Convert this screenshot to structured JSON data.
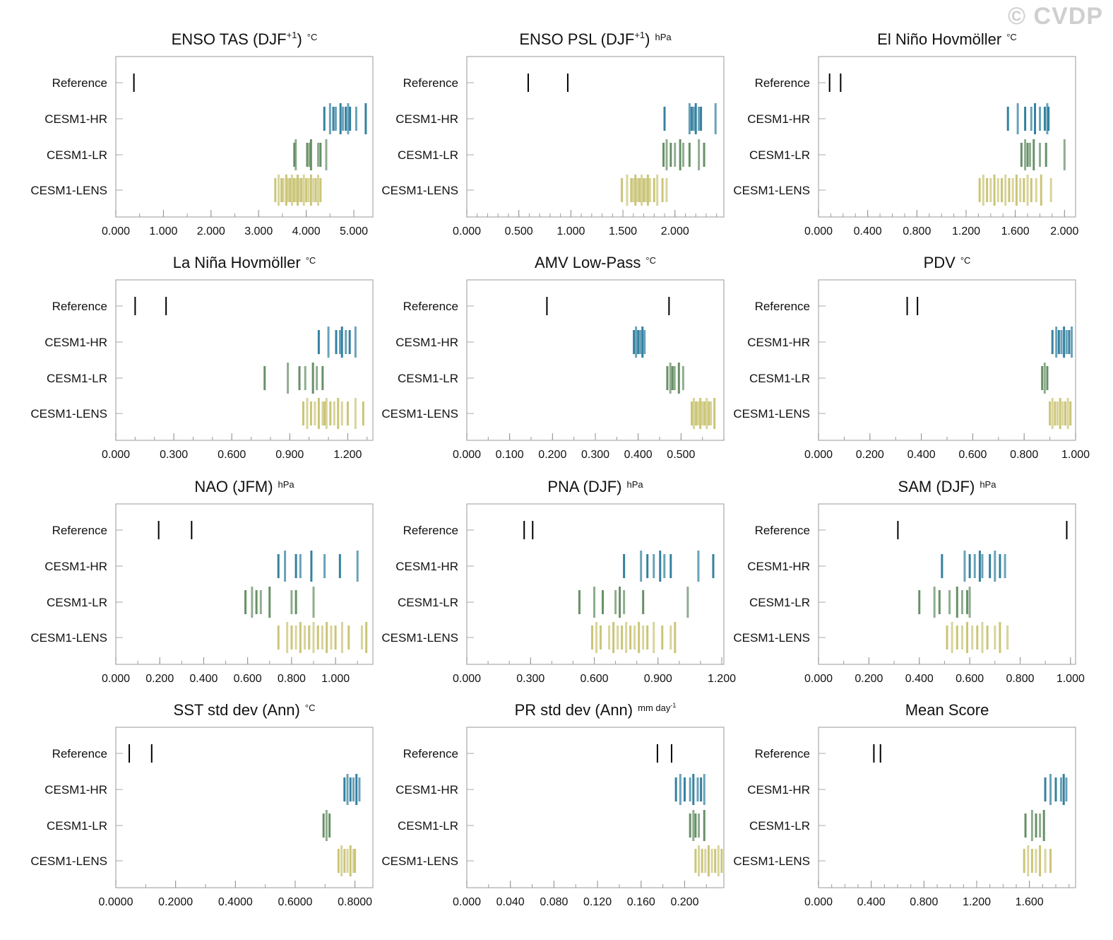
{
  "watermark": "© CVDP",
  "series_colors": {
    "CESM1-HR": "#2a7a9b",
    "CESM1-LR": "#5f8a5f",
    "CESM1-LENS": "#c8c270",
    "Reference": "#000000"
  },
  "chart_data": [
    {
      "type": "strip",
      "title": "ENSO TAS (DJF",
      "sup": "+1",
      "title_end": ")",
      "unit": "°C",
      "unit_sup": "",
      "ticks": [
        "0.000",
        "1.000",
        "2.000",
        "3.000",
        "4.000",
        "5.000"
      ],
      "tick_values": [
        0,
        1,
        2,
        3,
        4,
        5
      ],
      "minor_step": 0.5,
      "xlim": [
        0,
        5.4
      ],
      "rows": {
        "Reference": [
          0.38
        ],
        "CESM1-HR": [
          4.38,
          4.5,
          4.57,
          4.62,
          4.72,
          4.77,
          4.83,
          4.88,
          4.92,
          5.05,
          5.25
        ],
        "CESM1-LR": [
          3.75,
          3.78,
          4.02,
          4.07,
          4.1,
          4.25,
          4.3,
          4.42
        ],
        "CESM1-LENS": [
          3.35,
          3.42,
          3.48,
          3.52,
          3.58,
          3.62,
          3.66,
          3.7,
          3.74,
          3.78,
          3.82,
          3.86,
          3.9,
          3.95,
          4.0,
          4.05,
          4.1,
          4.15,
          4.2,
          4.25,
          4.3
        ]
      }
    },
    {
      "type": "strip",
      "title": "ENSO PSL (DJF",
      "sup": "+1",
      "title_end": ")",
      "unit": "hPa",
      "unit_sup": "",
      "ticks": [
        "0.000",
        "0.500",
        "1.000",
        "1.500",
        "2.000"
      ],
      "tick_values": [
        0,
        0.5,
        1,
        1.5,
        2
      ],
      "minor_step": 0.1,
      "xlim": [
        0,
        2.47
      ],
      "rows": {
        "Reference": [
          0.59,
          0.97
        ],
        "CESM1-HR": [
          1.9,
          2.14,
          2.16,
          2.18,
          2.2,
          2.23,
          2.25,
          2.39
        ],
        "CESM1-LR": [
          1.89,
          1.92,
          1.96,
          2.0,
          2.05,
          2.08,
          2.14,
          2.23,
          2.28
        ],
        "CESM1-LENS": [
          1.49,
          1.54,
          1.58,
          1.6,
          1.62,
          1.64,
          1.66,
          1.68,
          1.7,
          1.72,
          1.74,
          1.76,
          1.8,
          1.83,
          1.88,
          1.92
        ]
      }
    },
    {
      "type": "strip",
      "title": "El Niño Hovmöller",
      "sup": "",
      "title_end": "",
      "unit": "°C",
      "unit_sup": "",
      "ticks": [
        "0.000",
        "0.400",
        "0.800",
        "1.200",
        "1.600",
        "2.000"
      ],
      "tick_values": [
        0,
        0.4,
        0.8,
        1.2,
        1.6,
        2.0
      ],
      "minor_step": 0.1,
      "xlim": [
        0,
        2.09
      ],
      "rows": {
        "Reference": [
          0.09,
          0.18
        ],
        "CESM1-HR": [
          1.54,
          1.62,
          1.68,
          1.73,
          1.76,
          1.8,
          1.84,
          1.86,
          1.87
        ],
        "CESM1-LR": [
          1.65,
          1.68,
          1.7,
          1.72,
          1.75,
          1.8,
          1.85,
          2.0
        ],
        "CESM1-LENS": [
          1.31,
          1.34,
          1.37,
          1.4,
          1.43,
          1.46,
          1.49,
          1.52,
          1.55,
          1.58,
          1.61,
          1.64,
          1.67,
          1.7,
          1.73,
          1.77,
          1.81,
          1.89
        ]
      }
    },
    {
      "type": "strip",
      "title": "La Niña Hovmöller",
      "sup": "",
      "title_end": "",
      "unit": "°C",
      "unit_sup": "",
      "ticks": [
        "0.000",
        "0.300",
        "0.600",
        "0.900",
        "1.200"
      ],
      "tick_values": [
        0,
        0.3,
        0.6,
        0.9,
        1.2
      ],
      "minor_step": 0.1,
      "xlim": [
        0,
        1.33
      ],
      "rows": {
        "Reference": [
          0.1,
          0.26
        ],
        "CESM1-HR": [
          1.05,
          1.1,
          1.14,
          1.16,
          1.17,
          1.19,
          1.21,
          1.24
        ],
        "CESM1-LR": [
          0.77,
          0.89,
          0.95,
          0.98,
          1.02,
          1.04,
          1.07
        ],
        "CESM1-LENS": [
          0.97,
          0.99,
          1.01,
          1.03,
          1.05,
          1.07,
          1.08,
          1.09,
          1.11,
          1.13,
          1.15,
          1.17,
          1.2,
          1.24,
          1.28
        ]
      }
    },
    {
      "type": "strip",
      "title": "AMV Low-Pass",
      "sup": "",
      "title_end": "",
      "unit": "°C",
      "unit_sup": "",
      "ticks": [
        "0.000",
        "0.100",
        "0.200",
        "0.300",
        "0.400",
        "0.500"
      ],
      "tick_values": [
        0,
        0.1,
        0.2,
        0.3,
        0.4,
        0.5
      ],
      "minor_step": 0.05,
      "xlim": [
        0,
        0.6
      ],
      "rows": {
        "Reference": [
          0.187,
          0.472
        ],
        "CESM1-HR": [
          0.39,
          0.395,
          0.4,
          0.405,
          0.41,
          0.415
        ],
        "CESM1-LR": [
          0.468,
          0.475,
          0.48,
          0.485,
          0.495,
          0.505
        ],
        "CESM1-LENS": [
          0.525,
          0.53,
          0.535,
          0.54,
          0.545,
          0.55,
          0.555,
          0.56,
          0.565,
          0.57,
          0.578
        ]
      }
    },
    {
      "type": "strip",
      "title": "PDV",
      "sup": "",
      "title_end": "",
      "unit": "°C",
      "unit_sup": "",
      "ticks": [
        "0.000",
        "0.200",
        "0.400",
        "0.600",
        "0.800",
        "1.000"
      ],
      "tick_values": [
        0,
        0.2,
        0.4,
        0.6,
        0.8,
        1.0
      ],
      "minor_step": 0.1,
      "xlim": [
        0,
        1.0
      ],
      "rows": {
        "Reference": [
          0.345,
          0.385
        ],
        "CESM1-HR": [
          0.91,
          0.925,
          0.935,
          0.945,
          0.955,
          0.965,
          0.975,
          0.985
        ],
        "CESM1-LR": [
          0.87,
          0.88,
          0.89
        ],
        "CESM1-LENS": [
          0.9,
          0.91,
          0.92,
          0.93,
          0.94,
          0.95,
          0.96,
          0.97,
          0.98
        ]
      }
    },
    {
      "type": "strip",
      "title": "NAO (JFM)",
      "sup": "",
      "title_end": "",
      "unit": "hPa",
      "unit_sup": "",
      "ticks": [
        "0.000",
        "0.200",
        "0.400",
        "0.600",
        "0.800",
        "1.000"
      ],
      "tick_values": [
        0,
        0.2,
        0.4,
        0.6,
        0.8,
        1.0
      ],
      "minor_step": 0.1,
      "xlim": [
        0,
        1.17
      ],
      "rows": {
        "Reference": [
          0.195,
          0.345
        ],
        "CESM1-HR": [
          0.74,
          0.77,
          0.82,
          0.84,
          0.89,
          0.95,
          1.02,
          1.1
        ],
        "CESM1-LR": [
          0.59,
          0.62,
          0.64,
          0.66,
          0.7,
          0.8,
          0.82,
          0.9
        ],
        "CESM1-LENS": [
          0.74,
          0.78,
          0.8,
          0.82,
          0.84,
          0.86,
          0.88,
          0.9,
          0.92,
          0.94,
          0.96,
          0.98,
          1.0,
          1.03,
          1.06,
          1.12,
          1.14
        ]
      }
    },
    {
      "type": "strip",
      "title": "PNA (DJF)",
      "sup": "",
      "title_end": "",
      "unit": "hPa",
      "unit_sup": "",
      "ticks": [
        "0.000",
        "0.300",
        "0.600",
        "0.900",
        "1.200"
      ],
      "tick_values": [
        0,
        0.3,
        0.6,
        0.9,
        1.2
      ],
      "minor_step": 0.1,
      "xlim": [
        0,
        1.21
      ],
      "rows": {
        "Reference": [
          0.27,
          0.31
        ],
        "CESM1-HR": [
          0.74,
          0.82,
          0.85,
          0.88,
          0.91,
          0.93,
          0.96,
          1.09,
          1.16
        ],
        "CESM1-LR": [
          0.53,
          0.6,
          0.64,
          0.7,
          0.72,
          0.74,
          0.83,
          1.04
        ],
        "CESM1-LENS": [
          0.59,
          0.61,
          0.63,
          0.67,
          0.69,
          0.71,
          0.73,
          0.75,
          0.77,
          0.79,
          0.81,
          0.83,
          0.85,
          0.88,
          0.92,
          0.96,
          0.98
        ]
      }
    },
    {
      "type": "strip",
      "title": "SAM (DJF)",
      "sup": "",
      "title_end": "",
      "unit": "hPa",
      "unit_sup": "",
      "ticks": [
        "0.000",
        "0.200",
        "0.400",
        "0.600",
        "0.800",
        "1.000"
      ],
      "tick_values": [
        0,
        0.2,
        0.4,
        0.6,
        0.8,
        1.0
      ],
      "minor_step": 0.1,
      "xlim": [
        0,
        1.02
      ],
      "rows": {
        "Reference": [
          0.315,
          0.985
        ],
        "CESM1-HR": [
          0.49,
          0.58,
          0.6,
          0.62,
          0.64,
          0.65,
          0.68,
          0.7,
          0.72,
          0.74
        ],
        "CESM1-LR": [
          0.4,
          0.46,
          0.48,
          0.52,
          0.55,
          0.57,
          0.59,
          0.6
        ],
        "CESM1-LENS": [
          0.51,
          0.53,
          0.55,
          0.57,
          0.59,
          0.61,
          0.63,
          0.65,
          0.67,
          0.7,
          0.72,
          0.75
        ]
      }
    },
    {
      "type": "strip",
      "title": "SST std dev (Ann)",
      "sup": "",
      "title_end": "",
      "unit": "°C",
      "unit_sup": "",
      "ticks": [
        "0.0000",
        "0.2000",
        "0.4000",
        "0.6000",
        "0.8000"
      ],
      "tick_values": [
        0,
        0.2,
        0.4,
        0.6,
        0.8
      ],
      "minor_step": 0.1,
      "xlim": [
        0,
        0.86
      ],
      "rows": {
        "Reference": [
          0.045,
          0.12
        ],
        "CESM1-HR": [
          0.765,
          0.775,
          0.785,
          0.795,
          0.805,
          0.815
        ],
        "CESM1-LR": [
          0.695,
          0.705,
          0.715
        ],
        "CESM1-LENS": [
          0.745,
          0.755,
          0.765,
          0.775,
          0.785,
          0.795,
          0.8
        ]
      }
    },
    {
      "type": "strip",
      "title": "PR std dev (Ann)",
      "sup": "",
      "title_end": "",
      "unit": "mm day",
      "unit_sup": "-1",
      "ticks": [
        "0.000",
        "0.040",
        "0.080",
        "0.120",
        "0.160",
        "0.200"
      ],
      "tick_values": [
        0,
        0.04,
        0.08,
        0.12,
        0.16,
        0.2
      ],
      "minor_step": 0.02,
      "xlim": [
        0,
        0.236
      ],
      "rows": {
        "Reference": [
          0.175,
          0.188
        ],
        "CESM1-HR": [
          0.192,
          0.196,
          0.2,
          0.205,
          0.208,
          0.212,
          0.215,
          0.218
        ],
        "CESM1-LR": [
          0.205,
          0.208,
          0.21,
          0.213,
          0.218
        ],
        "CESM1-LENS": [
          0.21,
          0.213,
          0.216,
          0.219,
          0.222,
          0.225,
          0.228,
          0.231,
          0.234
        ]
      }
    },
    {
      "type": "strip",
      "title": "Mean Score",
      "sup": "",
      "title_end": "",
      "unit": "",
      "unit_sup": "",
      "ticks": [
        "0.000",
        "0.400",
        "0.800",
        "1.200",
        "1.600"
      ],
      "tick_values": [
        0,
        0.4,
        0.8,
        1.2,
        1.6
      ],
      "minor_step": 0.1,
      "xlim": [
        0,
        1.95
      ],
      "rows": {
        "Reference": [
          0.42,
          0.47
        ],
        "CESM1-HR": [
          1.72,
          1.76,
          1.8,
          1.84,
          1.86,
          1.88
        ],
        "CESM1-LR": [
          1.57,
          1.62,
          1.65,
          1.68,
          1.71
        ],
        "CESM1-LENS": [
          1.56,
          1.59,
          1.62,
          1.65,
          1.68,
          1.72,
          1.76
        ]
      }
    }
  ],
  "row_labels": [
    "Reference",
    "CESM1-HR",
    "CESM1-LR",
    "CESM1-LENS"
  ]
}
